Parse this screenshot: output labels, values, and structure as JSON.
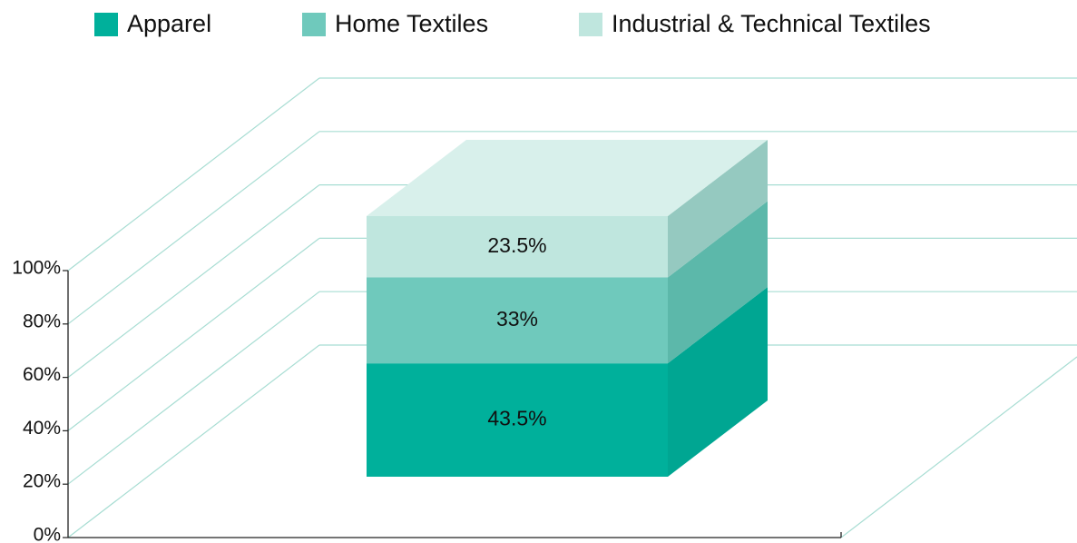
{
  "chart_data": {
    "type": "bar3d_stacked",
    "categories": [
      null
    ],
    "series": [
      {
        "name": "Apparel",
        "color": "#00b09b",
        "values": [
          43.5
        ],
        "value_labels": [
          "43.5%"
        ]
      },
      {
        "name": "Home Textiles",
        "color": "#6fc9bc",
        "values": [
          33
        ],
        "value_labels": [
          "33%"
        ]
      },
      {
        "name": "Industrial & Technical Textiles",
        "color": "#bfe6de",
        "values": [
          23.5
        ],
        "value_labels": [
          "23.5%"
        ]
      }
    ],
    "ylim": [
      0,
      100
    ],
    "yticks": [
      {
        "value": 0,
        "label": "0%"
      },
      {
        "value": 20,
        "label": "20%"
      },
      {
        "value": 40,
        "label": "40%"
      },
      {
        "value": 60,
        "label": "60%"
      },
      {
        "value": 80,
        "label": "80%"
      },
      {
        "value": 100,
        "label": "100%"
      }
    ],
    "legend": "top",
    "grid": true
  }
}
